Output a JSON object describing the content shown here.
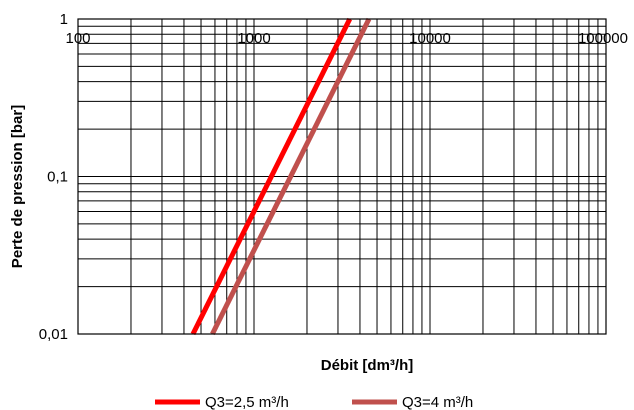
{
  "chart_data": {
    "type": "line",
    "title": "",
    "xlabel": "Débit [dm³/h]",
    "ylabel": "Perte de pression [bar]",
    "xscale": "log",
    "yscale": "log",
    "xlim": [
      100,
      100000
    ],
    "ylim": [
      0.01,
      1
    ],
    "x_tick_labels": [
      "100",
      "1000",
      "10000",
      "100000"
    ],
    "y_tick_labels": [
      "0,01",
      "0,1",
      "1"
    ],
    "grid": true,
    "legend_position": "bottom",
    "series": [
      {
        "name": "Q3=2,5 m³/h",
        "color": "#ff0000",
        "x": [
          450,
          3500
        ],
        "y": [
          0.01,
          1
        ]
      },
      {
        "name": "Q3=4 m³/h",
        "color": "#c0504d",
        "x": [
          580,
          4500
        ],
        "y": [
          0.01,
          1
        ]
      }
    ]
  }
}
